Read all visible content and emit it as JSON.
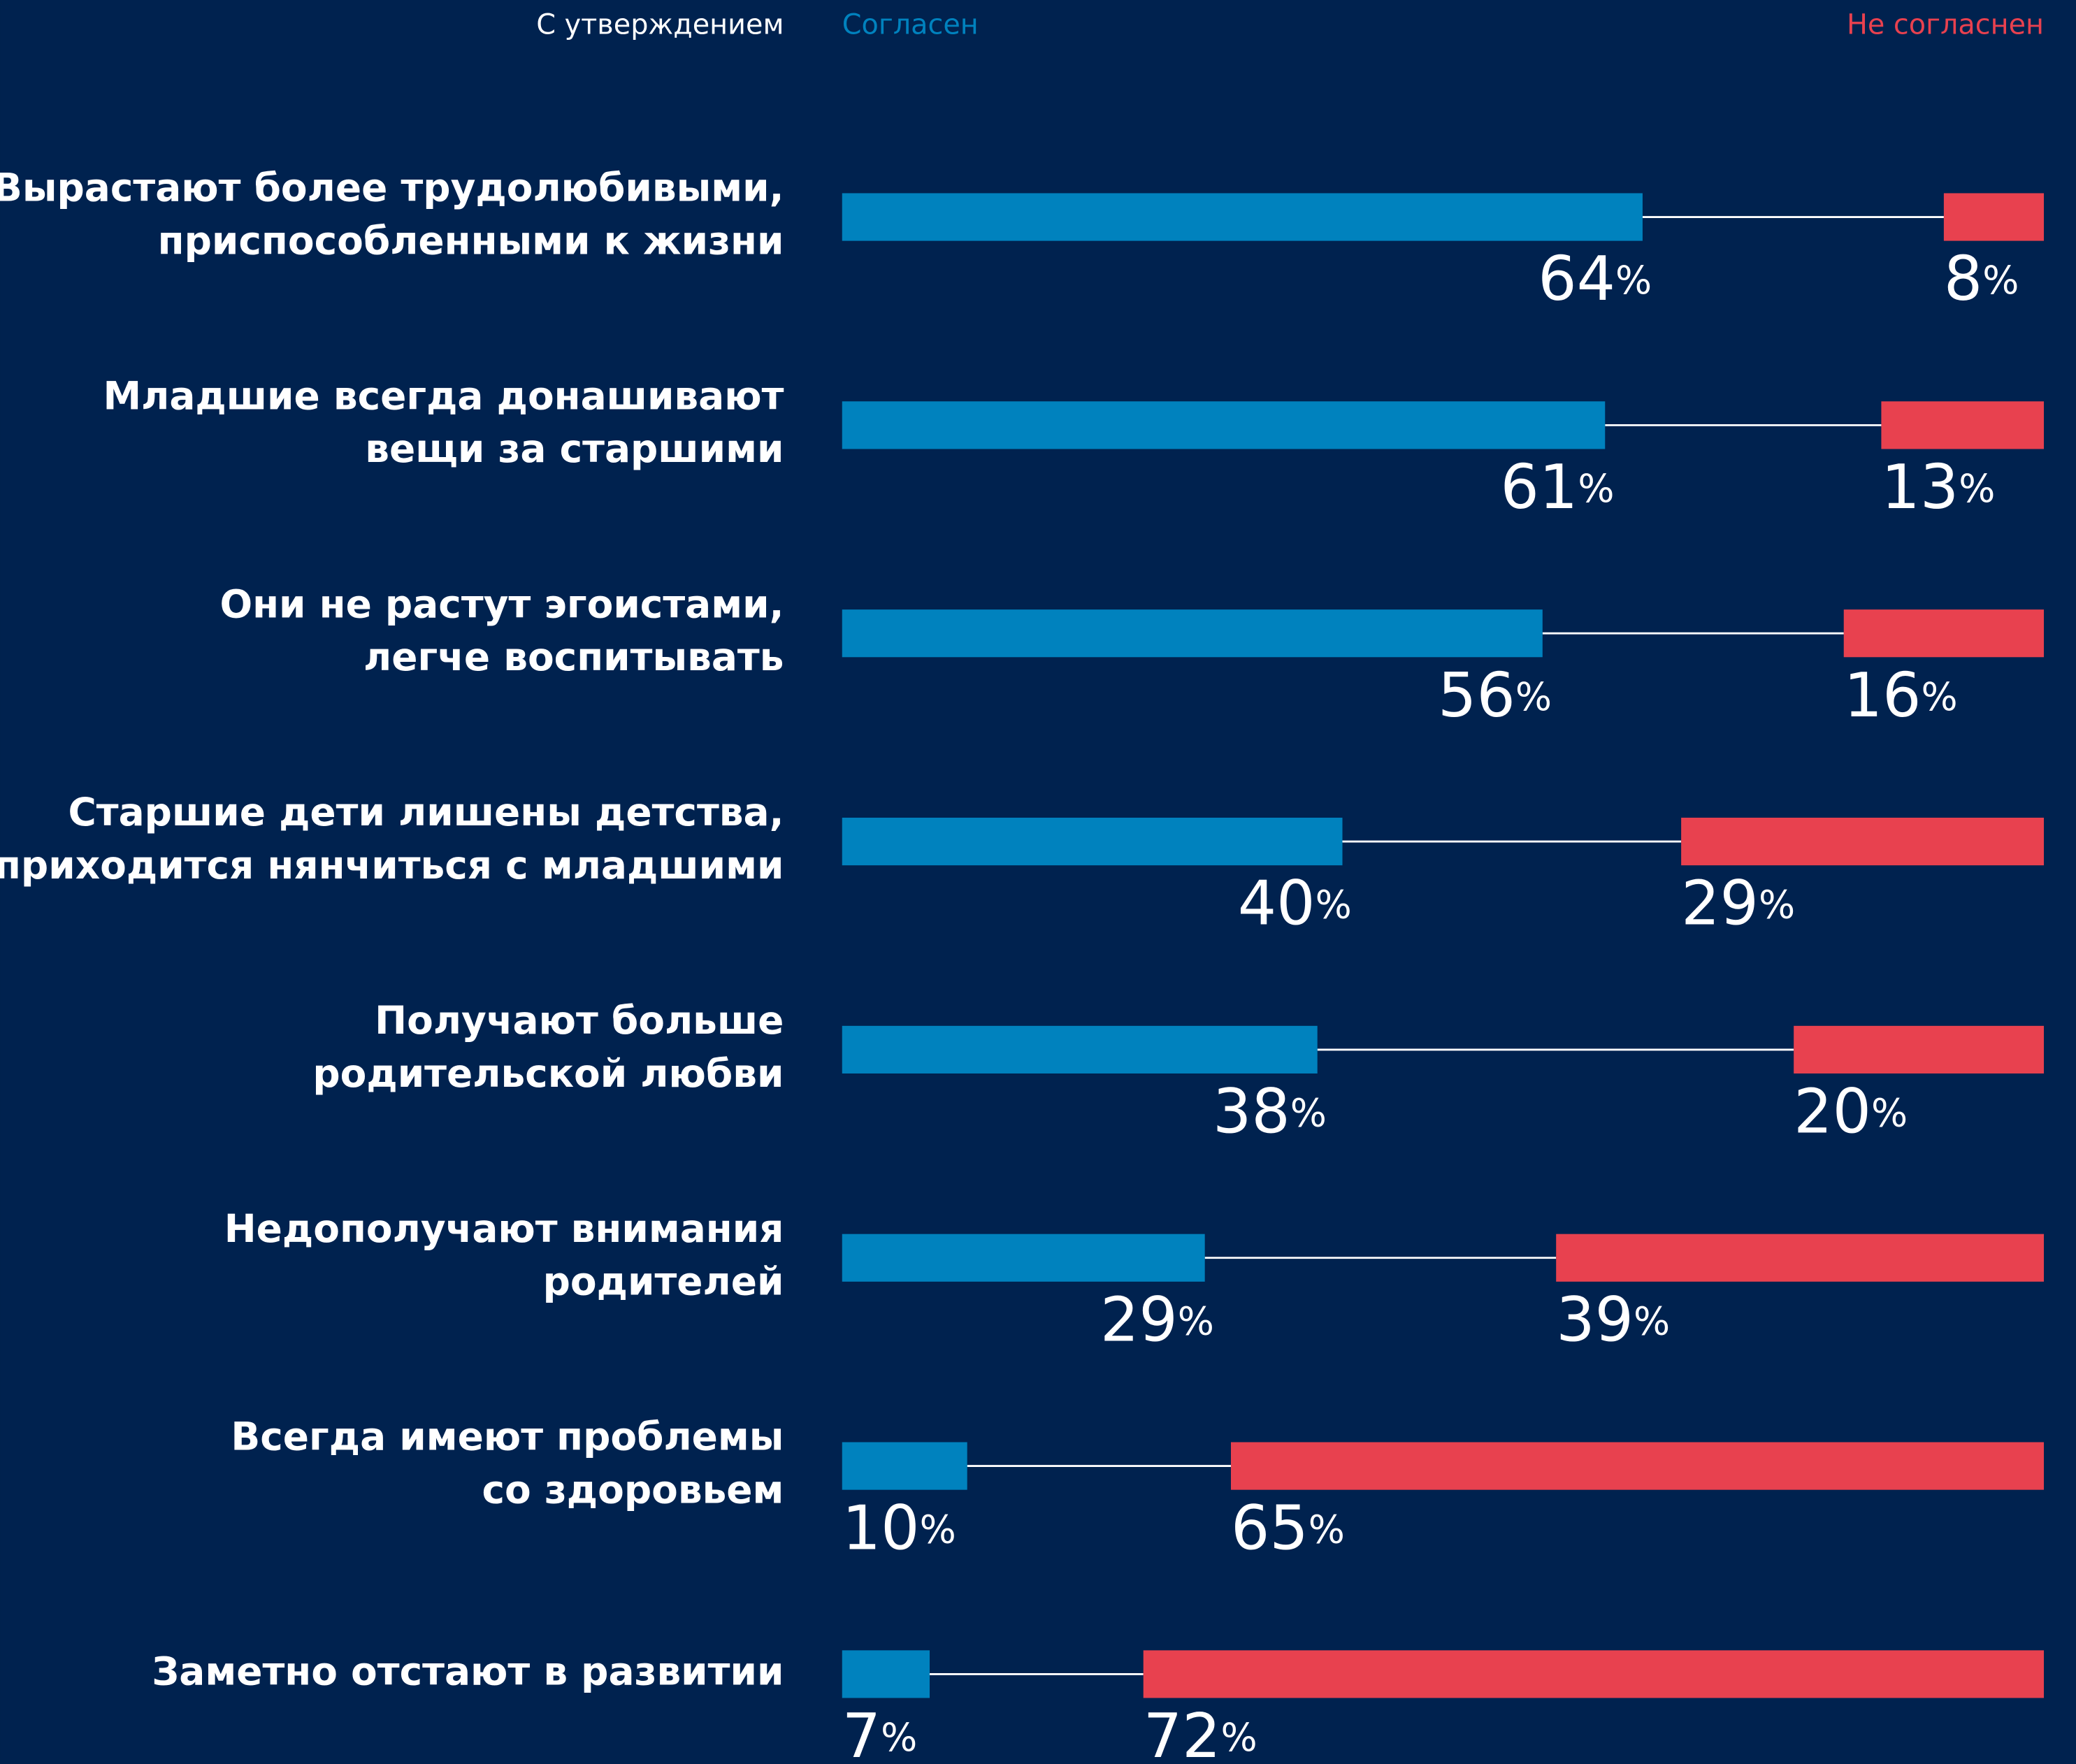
{
  "chart_data": {
    "type": "bar",
    "header": "С утверждением",
    "categories": [
      "Вырастают более трудолюбивыми,\nприспособленными к жизни",
      "Младшие всегда донашивают\nвещи за старшими",
      "Они не растут эгоистами,\nлегче воспитывать",
      "Старшие дети лишены детства,\nприходится нянчиться с младшими",
      "Получают больше\nродительской любви",
      "Недополучают внимания\nродителей",
      "Всегда имеют проблемы\nсо здоровьем",
      "Заметно отстают в развитии"
    ],
    "series": [
      {
        "name": "Согласен",
        "color": "#0082be",
        "values": [
          64,
          61,
          56,
          40,
          38,
          29,
          10,
          7
        ],
        "value_labels": [
          "64%",
          "61%",
          "56%",
          "40%",
          "38%",
          "29%",
          "10%",
          "7%"
        ]
      },
      {
        "name": "Не согласнен",
        "color": "#e8414f",
        "values": [
          8,
          13,
          16,
          29,
          20,
          39,
          65,
          72
        ],
        "value_labels": [
          "8%",
          "13%",
          "16%",
          "29%",
          "20%",
          "39%",
          "65%",
          "72%"
        ]
      }
    ]
  }
}
